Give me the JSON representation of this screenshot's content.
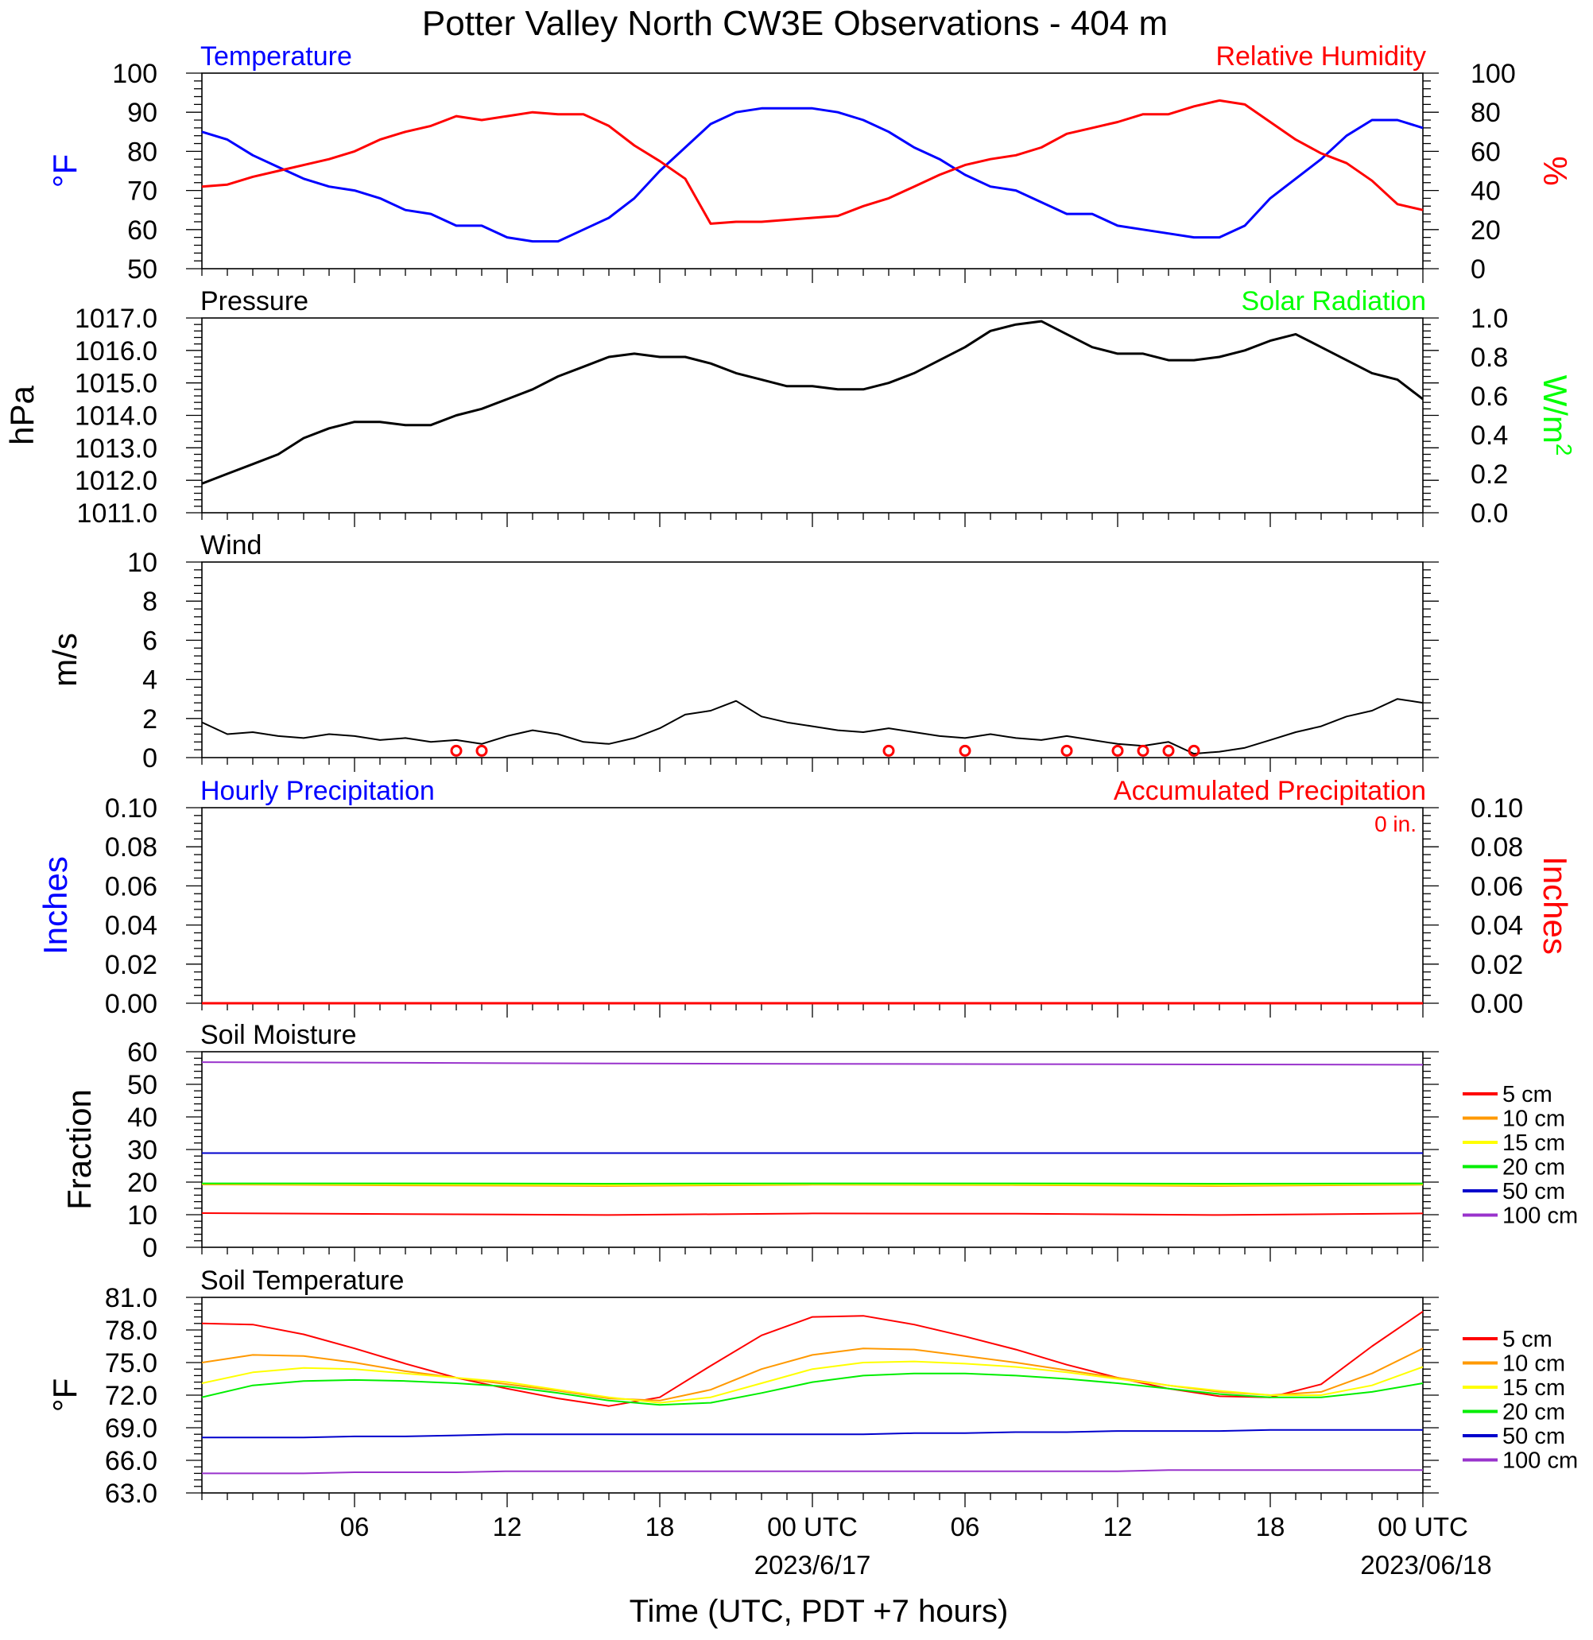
{
  "title": "Potter Valley North CW3E Observations - 404 m",
  "xaxis": {
    "title": "Time (UTC, PDT +7 hours)",
    "ticks": [
      "06",
      "12",
      "18",
      "00 UTC",
      "06",
      "12",
      "18",
      "00 UTC"
    ],
    "dates": [
      "2023/6/17",
      "2023/06/18"
    ]
  },
  "colors": {
    "temp": "#0000ff",
    "rh": "#ff0000",
    "pressure": "#000000",
    "solar": "#00ff00",
    "wind": "#000000",
    "barb": "#ff0000",
    "precip_hourly": "#0000ff",
    "precip_accum": "#ff0000"
  },
  "chart_data": [
    {
      "type": "line",
      "panel": "temperature_rh",
      "left_title": "Temperature",
      "right_title": "Relative Humidity",
      "ylabel_left": "°F",
      "ylabel_right": "%",
      "ylim_left": [
        50,
        100
      ],
      "ylim_right": [
        0,
        100
      ],
      "yticks_left": [
        "100",
        "90",
        "80",
        "70",
        "60",
        "50"
      ],
      "yticks_right": [
        "100",
        "80",
        "60",
        "40",
        "20",
        "0"
      ],
      "x_hours": [
        1,
        2,
        3,
        4,
        5,
        6,
        7,
        8,
        9,
        10,
        11,
        12,
        13,
        14,
        15,
        16,
        17,
        18,
        19,
        20,
        21,
        22,
        23,
        24,
        25,
        26,
        27,
        28,
        29,
        30,
        31,
        32,
        33,
        34,
        35,
        36,
        37,
        38,
        39,
        40,
        41,
        42,
        43,
        44,
        45,
        46,
        47,
        48,
        49
      ],
      "series": [
        {
          "name": "Temperature",
          "axis": "left",
          "values": [
            85,
            83,
            79,
            76,
            73,
            71,
            70,
            68,
            65,
            64,
            61,
            61,
            58,
            57,
            57,
            60,
            63,
            68,
            75,
            81,
            87,
            90,
            91,
            91,
            91,
            90,
            88,
            85,
            81,
            78,
            74,
            71,
            70,
            67,
            64,
            64,
            61,
            60,
            59,
            58,
            58,
            61,
            68,
            73,
            78,
            84,
            88,
            88,
            86
          ]
        },
        {
          "name": "Relative Humidity",
          "axis": "right",
          "values": [
            42,
            43,
            47,
            50,
            53,
            56,
            60,
            66,
            70,
            73,
            78,
            76,
            78,
            80,
            79,
            79,
            73,
            63,
            55,
            46,
            23,
            24,
            24,
            25,
            26,
            27,
            32,
            36,
            42,
            48,
            53,
            56,
            58,
            62,
            69,
            72,
            75,
            79,
            79,
            83,
            86,
            84,
            75,
            66,
            59,
            54,
            45,
            33,
            30
          ]
        }
      ]
    },
    {
      "type": "line",
      "panel": "pressure_solar",
      "left_title": "Pressure",
      "right_title": "Solar Radiation",
      "ylabel_left": "hPa",
      "ylabel_right_main": "W/m",
      "ylabel_right_sup": "2",
      "ylim_left": [
        1011.0,
        1017.0
      ],
      "ylim_right": [
        0.0,
        1.0
      ],
      "yticks_left": [
        "1017.0",
        "1016.0",
        "1015.0",
        "1014.0",
        "1013.0",
        "1012.0",
        "1011.0"
      ],
      "yticks_right": [
        "1.0",
        "0.8",
        "0.6",
        "0.4",
        "0.2",
        "0.0"
      ],
      "x_hours": [
        1,
        2,
        3,
        4,
        5,
        6,
        7,
        8,
        9,
        10,
        11,
        12,
        13,
        14,
        15,
        16,
        17,
        18,
        19,
        20,
        21,
        22,
        23,
        24,
        25,
        26,
        27,
        28,
        29,
        30,
        31,
        32,
        33,
        34,
        35,
        36,
        37,
        38,
        39,
        40,
        41,
        42,
        43,
        44,
        45,
        46,
        47,
        48,
        49
      ],
      "series": [
        {
          "name": "Pressure",
          "axis": "left",
          "values": [
            1011.9,
            1012.2,
            1012.5,
            1012.8,
            1013.3,
            1013.6,
            1013.8,
            1013.8,
            1013.7,
            1013.7,
            1014.0,
            1014.2,
            1014.5,
            1014.8,
            1015.2,
            1015.5,
            1015.8,
            1015.9,
            1015.8,
            1015.8,
            1015.6,
            1015.3,
            1015.1,
            1014.9,
            1014.9,
            1014.8,
            1014.8,
            1015.0,
            1015.3,
            1015.7,
            1016.1,
            1016.6,
            1016.8,
            1016.9,
            1016.5,
            1016.1,
            1015.9,
            1015.9,
            1015.7,
            1015.7,
            1015.8,
            1016.0,
            1016.3,
            1016.5,
            1016.1,
            1015.7,
            1015.3,
            1015.1,
            1014.5
          ]
        }
      ]
    },
    {
      "type": "line",
      "panel": "wind",
      "left_title": "Wind",
      "ylabel_left": "m/s",
      "ylim_left": [
        0,
        10
      ],
      "yticks_left": [
        "10",
        "8",
        "6",
        "4",
        "2",
        "0"
      ],
      "x_hours": [
        1,
        2,
        3,
        4,
        5,
        6,
        7,
        8,
        9,
        10,
        11,
        12,
        13,
        14,
        15,
        16,
        17,
        18,
        19,
        20,
        21,
        22,
        23,
        24,
        25,
        26,
        27,
        28,
        29,
        30,
        31,
        32,
        33,
        34,
        35,
        36,
        37,
        38,
        39,
        40,
        41,
        42,
        43,
        44,
        45,
        46,
        47,
        48,
        49
      ],
      "series": [
        {
          "name": "Wind",
          "axis": "left",
          "values": [
            1.8,
            1.2,
            1.3,
            1.1,
            1.0,
            1.2,
            1.1,
            0.9,
            1.0,
            0.8,
            0.9,
            0.7,
            1.1,
            1.4,
            1.2,
            0.8,
            0.7,
            1.0,
            1.5,
            2.2,
            2.4,
            2.9,
            2.1,
            1.8,
            1.6,
            1.4,
            1.3,
            1.5,
            1.3,
            1.1,
            1.0,
            1.2,
            1.0,
            0.9,
            1.1,
            0.9,
            0.7,
            0.6,
            0.8,
            0.2,
            0.3,
            0.5,
            0.9,
            1.3,
            1.6,
            2.1,
            2.4,
            3.0,
            2.8
          ]
        }
      ],
      "calm_hours": [
        11,
        12,
        28,
        31,
        35,
        37,
        38,
        39,
        40
      ]
    },
    {
      "type": "line",
      "panel": "precipitation",
      "left_title": "Hourly Precipitation",
      "right_title": "Accumulated Precipitation",
      "right_note": "0 in.",
      "ylabel_left": "Inches",
      "ylabel_right": "Inches",
      "ylim_left": [
        0.0,
        0.1
      ],
      "ylim_right": [
        0.0,
        0.1
      ],
      "yticks_left": [
        "0.10",
        "0.08",
        "0.06",
        "0.04",
        "0.02",
        "0.00"
      ],
      "yticks_right": [
        "0.10",
        "0.08",
        "0.06",
        "0.04",
        "0.02",
        "0.00"
      ],
      "x_hours": [
        1,
        49
      ],
      "series": [
        {
          "name": "Hourly Precipitation",
          "axis": "left",
          "values": [
            0,
            0
          ]
        },
        {
          "name": "Accumulated Precipitation",
          "axis": "right",
          "values": [
            0,
            0
          ]
        }
      ]
    },
    {
      "type": "line",
      "panel": "soil_moisture",
      "left_title": "Soil Moisture",
      "ylabel_left": "Fraction",
      "ylim_left": [
        0,
        60
      ],
      "yticks_left": [
        "60",
        "50",
        "40",
        "30",
        "20",
        "10",
        "0"
      ],
      "x_hours": [
        1,
        9,
        17,
        25,
        33,
        41,
        49
      ],
      "series": [
        {
          "name": "5 cm",
          "color": "#ff0000",
          "values": [
            10.5,
            10.2,
            9.9,
            10.4,
            10.3,
            9.9,
            10.4
          ]
        },
        {
          "name": "10 cm",
          "color": "#ff9900",
          "values": [
            19.3,
            19.0,
            18.8,
            19.2,
            19.1,
            18.8,
            19.2
          ]
        },
        {
          "name": "15 cm",
          "color": "#ffff00",
          "values": [
            19.5,
            19.3,
            19.1,
            19.4,
            19.3,
            19.1,
            19.4
          ]
        },
        {
          "name": "20 cm",
          "color": "#00ee00",
          "values": [
            19.6,
            19.6,
            19.5,
            19.6,
            19.6,
            19.5,
            19.6
          ]
        },
        {
          "name": "50 cm",
          "color": "#0000cc",
          "values": [
            28.9,
            28.9,
            28.9,
            28.9,
            28.9,
            28.9,
            28.9
          ]
        },
        {
          "name": "100 cm",
          "color": "#9933cc",
          "values": [
            56.8,
            56.6,
            56.4,
            56.3,
            56.2,
            56.1,
            56.0
          ]
        }
      ],
      "legend": [
        "5 cm",
        "10 cm",
        "15 cm",
        "20 cm",
        "50 cm",
        "100 cm"
      ]
    },
    {
      "type": "line",
      "panel": "soil_temperature",
      "left_title": "Soil Temperature",
      "ylabel_left": "°F",
      "ylim_left": [
        63.0,
        81.0
      ],
      "yticks_left": [
        "81.0",
        "78.0",
        "75.0",
        "72.0",
        "69.0",
        "66.0",
        "63.0"
      ],
      "x_hours": [
        1,
        3,
        5,
        7,
        9,
        11,
        13,
        15,
        17,
        19,
        21,
        23,
        25,
        27,
        29,
        31,
        33,
        35,
        37,
        39,
        41,
        43,
        45,
        47,
        49
      ],
      "series": [
        {
          "name": "5 cm",
          "color": "#ff0000",
          "values": [
            78.6,
            78.5,
            77.6,
            76.3,
            74.9,
            73.6,
            72.6,
            71.7,
            71.0,
            71.8,
            74.7,
            77.5,
            79.2,
            79.3,
            78.5,
            77.4,
            76.2,
            74.8,
            73.6,
            72.6,
            71.9,
            71.8,
            73.0,
            76.5,
            79.7
          ]
        },
        {
          "name": "10 cm",
          "color": "#ff9900",
          "values": [
            75.0,
            75.7,
            75.6,
            75.0,
            74.2,
            73.6,
            73.0,
            72.4,
            71.7,
            71.5,
            72.5,
            74.4,
            75.7,
            76.3,
            76.2,
            75.6,
            75.0,
            74.3,
            73.6,
            72.9,
            72.3,
            72.0,
            72.3,
            74.0,
            76.3
          ]
        },
        {
          "name": "15 cm",
          "color": "#ffff00",
          "values": [
            73.1,
            74.1,
            74.5,
            74.4,
            74.0,
            73.6,
            73.2,
            72.5,
            71.8,
            71.3,
            71.8,
            73.1,
            74.4,
            75.0,
            75.1,
            74.9,
            74.6,
            74.1,
            73.5,
            72.9,
            72.4,
            72.0,
            72.0,
            72.9,
            74.6
          ]
        },
        {
          "name": "20 cm",
          "color": "#00ee00",
          "values": [
            71.8,
            72.9,
            73.3,
            73.4,
            73.3,
            73.1,
            72.8,
            72.2,
            71.5,
            71.1,
            71.3,
            72.2,
            73.2,
            73.8,
            74.0,
            74.0,
            73.8,
            73.5,
            73.1,
            72.6,
            72.1,
            71.8,
            71.8,
            72.3,
            73.1
          ]
        },
        {
          "name": "50 cm",
          "color": "#0000cc",
          "values": [
            68.1,
            68.1,
            68.1,
            68.2,
            68.2,
            68.3,
            68.4,
            68.4,
            68.4,
            68.4,
            68.4,
            68.4,
            68.4,
            68.4,
            68.5,
            68.5,
            68.6,
            68.6,
            68.7,
            68.7,
            68.7,
            68.8,
            68.8,
            68.8,
            68.8
          ]
        },
        {
          "name": "100 cm",
          "color": "#9933cc",
          "values": [
            64.8,
            64.8,
            64.8,
            64.9,
            64.9,
            64.9,
            65.0,
            65.0,
            65.0,
            65.0,
            65.0,
            65.0,
            65.0,
            65.0,
            65.0,
            65.0,
            65.0,
            65.0,
            65.0,
            65.1,
            65.1,
            65.1,
            65.1,
            65.1,
            65.1
          ]
        }
      ],
      "legend": [
        "5 cm",
        "10 cm",
        "15 cm",
        "20 cm",
        "50 cm",
        "100 cm"
      ]
    }
  ]
}
